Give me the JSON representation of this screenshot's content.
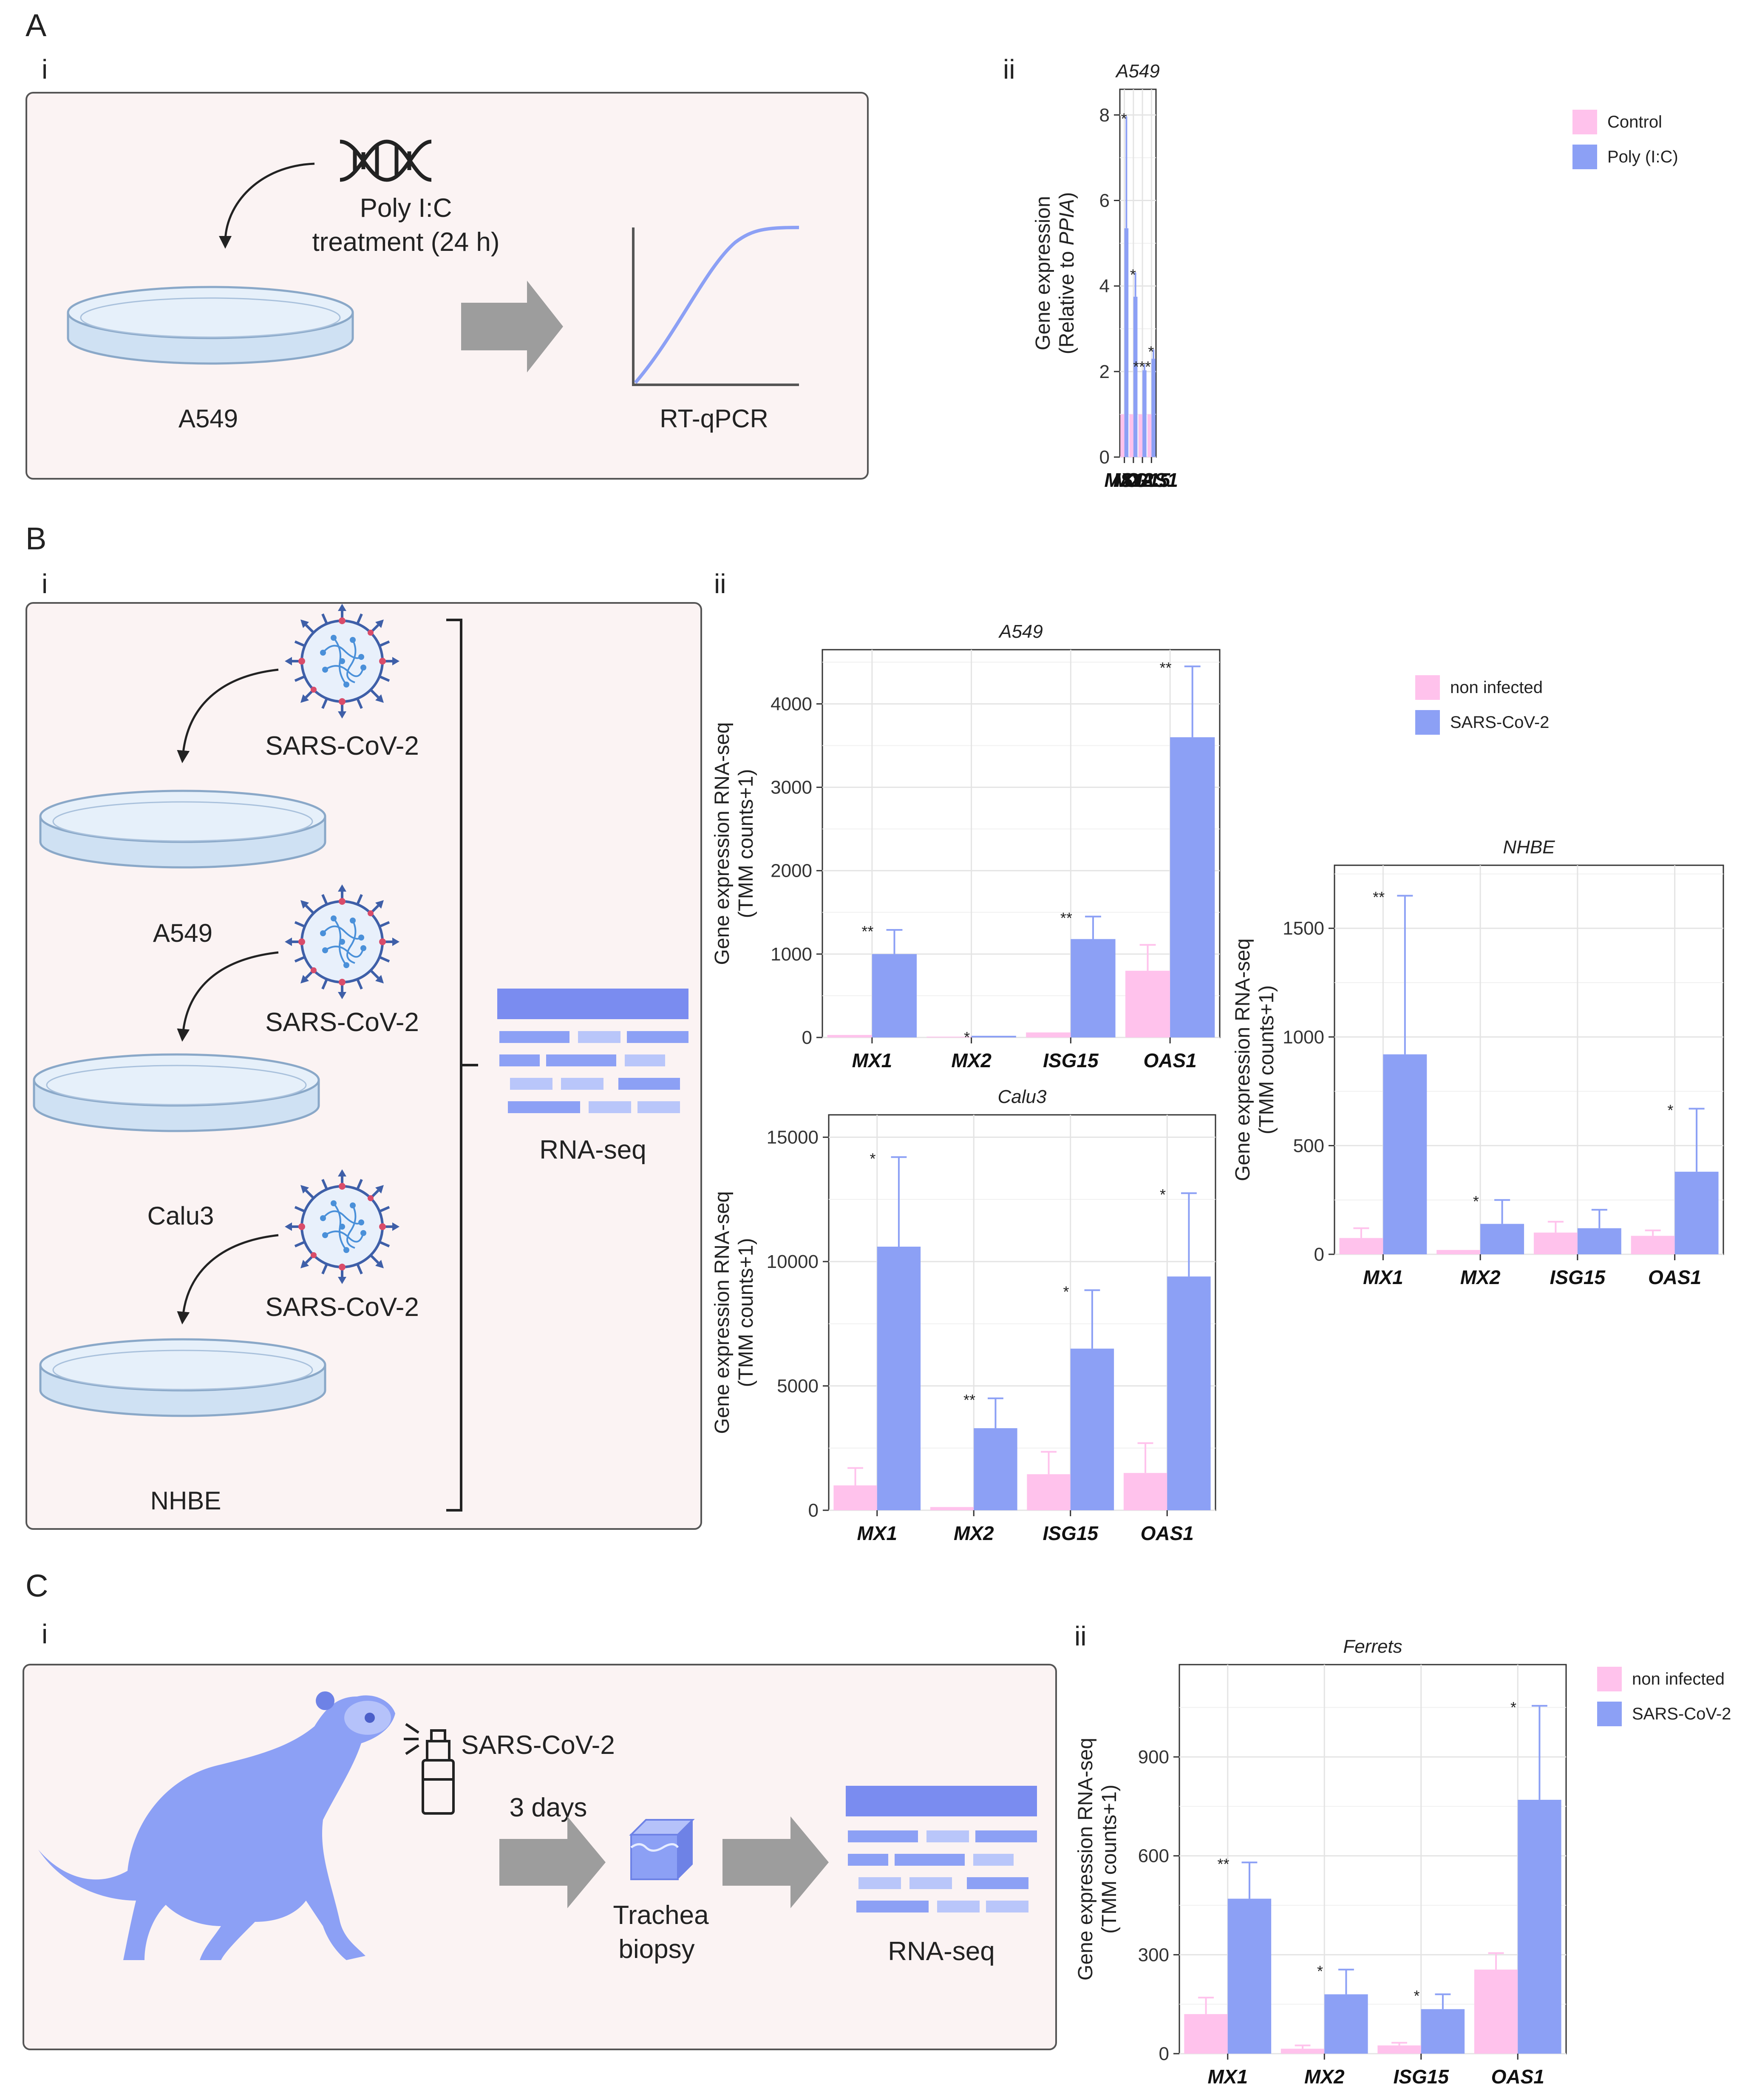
{
  "panels": {
    "A": {
      "letter": "A",
      "sub_i": "i",
      "sub_ii": "ii",
      "schematic": {
        "treatment_line1": "Poly I:C",
        "treatment_line2": "treatment (24 h)",
        "cell_line": "A549",
        "assay": "RT-qPCR"
      }
    },
    "B": {
      "letter": "B",
      "sub_i": "i",
      "sub_ii": "ii",
      "schematic": {
        "virus": "SARS-CoV-2",
        "cells": [
          "A549",
          "Calu3",
          "NHBE"
        ],
        "assay": "RNA-seq"
      }
    },
    "C": {
      "letter": "C",
      "sub_i": "i",
      "sub_ii": "ii",
      "schematic": {
        "virus": "SARS-CoV-2",
        "duration": "3 days",
        "sample_line1": "Trachea",
        "sample_line2": "biopsy",
        "assay": "RNA-seq"
      }
    }
  },
  "colors": {
    "control": "#ffc2ec",
    "treated": "#8ca0f5",
    "error": "#8ca0f5",
    "schematic_bg": "#fbf3f3",
    "schematic_accent": "#7a8cf0",
    "dish": "#cfe1f3",
    "arrow": "#9d9d9d"
  },
  "chart_data": [
    {
      "id": "A549_qpcr",
      "type": "bar",
      "title": "A549",
      "ylabel_line1": "Gene expression",
      "ylabel_line2_prefix": "(Relative to ",
      "ylabel_line2_italic": "PPIA",
      "ylabel_line2_suffix": ")",
      "categories": [
        "MX1",
        "MX2",
        "ISG15",
        "OAS1"
      ],
      "ylim": [
        0,
        8.6
      ],
      "yticks": [
        0,
        2,
        4,
        6,
        8
      ],
      "ytick_labels": [
        "0",
        "2",
        "4",
        "6",
        "8"
      ],
      "series": [
        {
          "name": "Control",
          "values": [
            1.0,
            1.0,
            1.0,
            1.0
          ],
          "errors": [
            0,
            0,
            0,
            0
          ]
        },
        {
          "name": "Poly (I:C)",
          "values": [
            5.35,
            3.75,
            2.03,
            2.3
          ],
          "errors": [
            2.6,
            0.55,
            0.12,
            0.2
          ]
        }
      ],
      "significance": [
        "*",
        "*",
        "***",
        "*"
      ],
      "legend": [
        "Control",
        "Poly (I:C)"
      ]
    },
    {
      "id": "A549_rnaseq",
      "type": "bar",
      "title": "A549",
      "ylabel_line1": "Gene expression RNA-seq",
      "ylabel_line2": "(TMM counts+1)",
      "categories": [
        "MX1",
        "MX2",
        "ISG15",
        "OAS1"
      ],
      "ylim": [
        0,
        4650
      ],
      "yticks": [
        0,
        1000,
        2000,
        3000,
        4000
      ],
      "ytick_labels": [
        "0",
        "1000",
        "2000",
        "3000",
        "4000"
      ],
      "series": [
        {
          "name": "non infected",
          "values": [
            30,
            10,
            60,
            800
          ],
          "errors": [
            0,
            0,
            0,
            310
          ]
        },
        {
          "name": "SARS-CoV-2",
          "values": [
            1000,
            20,
            1180,
            3600
          ],
          "errors": [
            290,
            0,
            270,
            850
          ]
        }
      ],
      "significance": [
        "**",
        "*",
        "**",
        "**"
      ],
      "legend": [
        "non infected",
        "SARS-CoV-2"
      ]
    },
    {
      "id": "Calu3_rnaseq",
      "type": "bar",
      "title": "Calu3",
      "ylabel_line1": "Gene expression RNA-seq",
      "ylabel_line2": "(TMM counts+1)",
      "categories": [
        "MX1",
        "MX2",
        "ISG15",
        "OAS1"
      ],
      "ylim": [
        0,
        15900
      ],
      "yticks": [
        0,
        5000,
        10000,
        15000
      ],
      "ytick_labels": [
        "0",
        "5000",
        "10000",
        "15000"
      ],
      "series": [
        {
          "name": "non infected",
          "values": [
            1000,
            130,
            1450,
            1500
          ],
          "errors": [
            700,
            0,
            900,
            1200
          ]
        },
        {
          "name": "SARS-CoV-2",
          "values": [
            10600,
            3300,
            6500,
            9400
          ],
          "errors": [
            3600,
            1200,
            2350,
            3350
          ]
        }
      ],
      "significance": [
        "*",
        "**",
        "*",
        "*"
      ]
    },
    {
      "id": "NHBE_rnaseq",
      "type": "bar",
      "title": "NHBE",
      "ylabel_line1": "Gene expression RNA-seq",
      "ylabel_line2": "(TMM counts+1)",
      "categories": [
        "MX1",
        "MX2",
        "ISG15",
        "OAS1"
      ],
      "ylim": [
        0,
        1790
      ],
      "yticks": [
        0,
        500,
        1000,
        1500
      ],
      "ytick_labels": [
        "0",
        "500",
        "1000",
        "1500"
      ],
      "series": [
        {
          "name": "non infected",
          "values": [
            75,
            20,
            100,
            85
          ],
          "errors": [
            45,
            0,
            50,
            25
          ]
        },
        {
          "name": "SARS-CoV-2",
          "values": [
            920,
            140,
            120,
            380
          ],
          "errors": [
            730,
            110,
            85,
            290
          ]
        }
      ],
      "significance": [
        "**",
        "*",
        "",
        "*"
      ]
    },
    {
      "id": "Ferrets_rnaseq",
      "type": "bar",
      "title": "Ferrets",
      "ylabel_line1": "Gene expression RNA-seq",
      "ylabel_line2": "(TMM counts+1)",
      "categories": [
        "MX1",
        "MX2",
        "ISG15",
        "OAS1"
      ],
      "ylim": [
        0,
        1180
      ],
      "yticks": [
        0,
        300,
        600,
        900
      ],
      "ytick_labels": [
        "0",
        "300",
        "600",
        "900"
      ],
      "series": [
        {
          "name": "non infected",
          "values": [
            120,
            15,
            25,
            255
          ],
          "errors": [
            50,
            10,
            8,
            50
          ]
        },
        {
          "name": "SARS-CoV-2",
          "values": [
            470,
            180,
            135,
            770
          ],
          "errors": [
            110,
            75,
            45,
            285
          ]
        }
      ],
      "significance": [
        "**",
        "*",
        "*",
        "*"
      ],
      "legend": [
        "non infected",
        "SARS-CoV-2"
      ]
    }
  ]
}
